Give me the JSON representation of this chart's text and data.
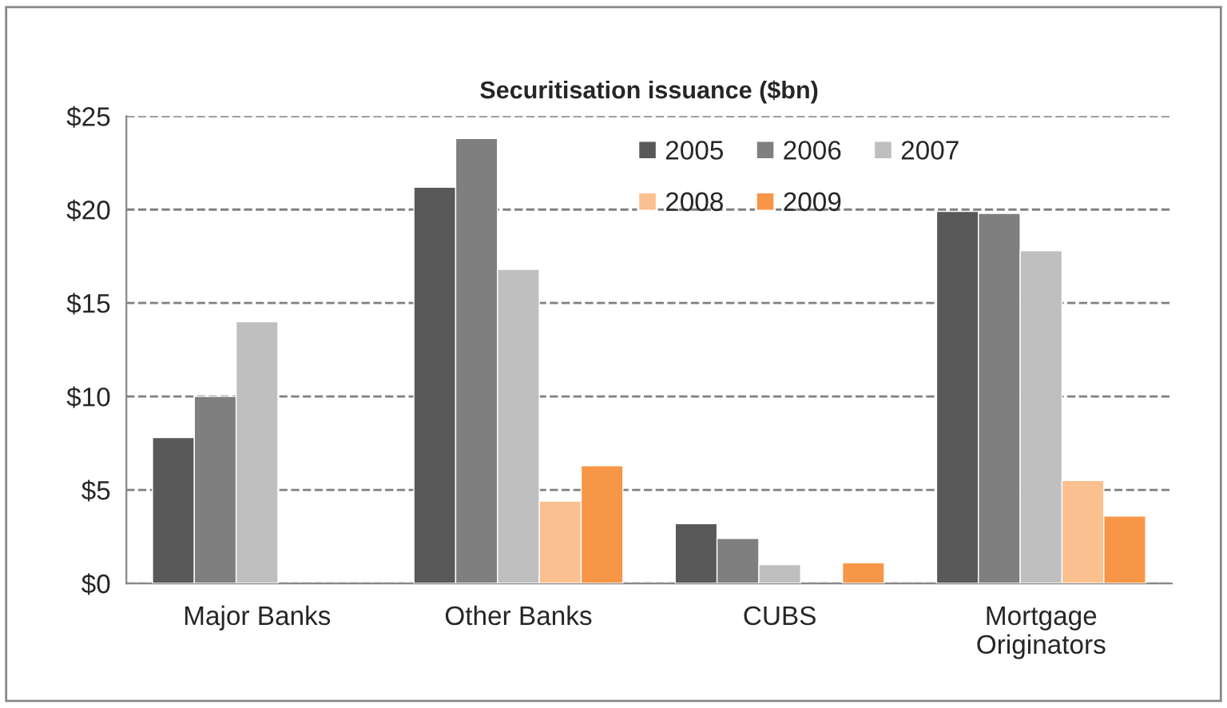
{
  "chart_data": {
    "type": "bar",
    "title": "Securitisation issuance ($bn)",
    "categories": [
      "Major Banks",
      "Other Banks",
      "CUBS",
      "Mortgage\nOriginators"
    ],
    "series": [
      {
        "name": "2005",
        "color": "#595959",
        "values": [
          7.8,
          21.2,
          3.2,
          19.9
        ]
      },
      {
        "name": "2006",
        "color": "#7f7f7f",
        "values": [
          10.0,
          23.8,
          2.4,
          19.8
        ]
      },
      {
        "name": "2007",
        "color": "#bfbfbf",
        "values": [
          14.0,
          16.8,
          1.0,
          17.8
        ]
      },
      {
        "name": "2008",
        "color": "#fac090",
        "values": [
          null,
          4.4,
          null,
          5.5
        ]
      },
      {
        "name": "2009",
        "color": "#f79646",
        "values": [
          null,
          6.3,
          1.1,
          3.6
        ]
      }
    ],
    "ylim": [
      0,
      25
    ],
    "yticks": [
      {
        "value": 0,
        "label": "$0"
      },
      {
        "value": 5,
        "label": "$5"
      },
      {
        "value": 10,
        "label": "$10"
      },
      {
        "value": 15,
        "label": "$15"
      },
      {
        "value": 20,
        "label": "$20"
      },
      {
        "value": 25,
        "label": "$25"
      }
    ],
    "grid": "y",
    "legend": "top right"
  }
}
